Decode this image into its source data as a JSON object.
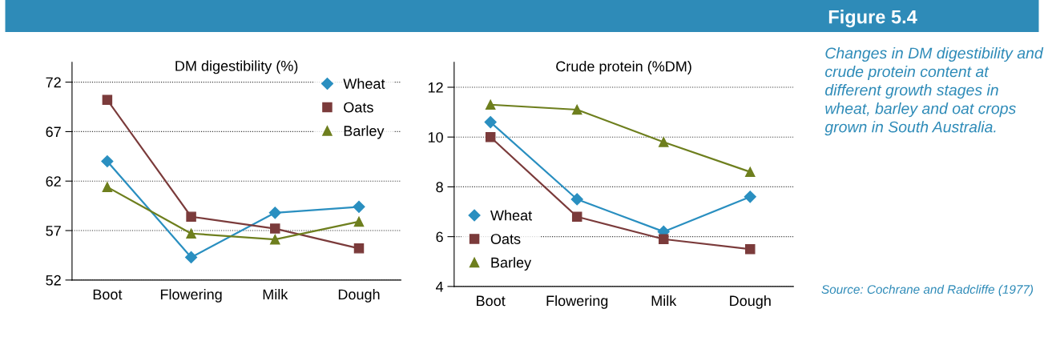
{
  "chart_data": [
    {
      "type": "line",
      "title": "DM digestibility (%)",
      "categories": [
        "Boot",
        "Flowering",
        "Milk",
        "Dough"
      ],
      "series": [
        {
          "name": "Wheat",
          "color": "#2a8fc0",
          "marker": "diamond",
          "values": [
            64.0,
            54.3,
            58.8,
            59.4
          ]
        },
        {
          "name": "Oats",
          "color": "#7b3b3b",
          "marker": "square",
          "values": [
            70.2,
            58.4,
            57.2,
            55.2
          ]
        },
        {
          "name": "Barley",
          "color": "#6e7f1e",
          "marker": "triangle",
          "values": [
            61.4,
            56.7,
            56.1,
            57.9
          ]
        }
      ],
      "ylim": [
        52,
        74
      ],
      "yticks": [
        52,
        57,
        62,
        67,
        72
      ],
      "grid": "y",
      "legend": "top right"
    },
    {
      "type": "line",
      "title": "Crude protein (%DM)",
      "categories": [
        "Boot",
        "Flowering",
        "Milk",
        "Dough"
      ],
      "series": [
        {
          "name": "Wheat",
          "color": "#2a8fc0",
          "marker": "diamond",
          "values": [
            10.6,
            7.5,
            6.2,
            7.6
          ]
        },
        {
          "name": "Oats",
          "color": "#7b3b3b",
          "marker": "square",
          "values": [
            10.0,
            6.8,
            5.9,
            5.5
          ]
        },
        {
          "name": "Barley",
          "color": "#6e7f1e",
          "marker": "triangle",
          "values": [
            11.3,
            11.1,
            9.8,
            8.6
          ]
        }
      ],
      "ylim": [
        4,
        13
      ],
      "yticks": [
        4,
        6,
        8,
        10,
        12
      ],
      "grid": "y",
      "legend": "bottom left"
    },
    {
      "type": "other",
      "title": "Figure 5.4",
      "annotations": [
        "Changes in DM digestibility and crude protein content at different growth stages in wheat, barley and oat crops grown in South Australia.",
        "Source: Cochrane and Radcliffe (1977)"
      ]
    }
  ]
}
